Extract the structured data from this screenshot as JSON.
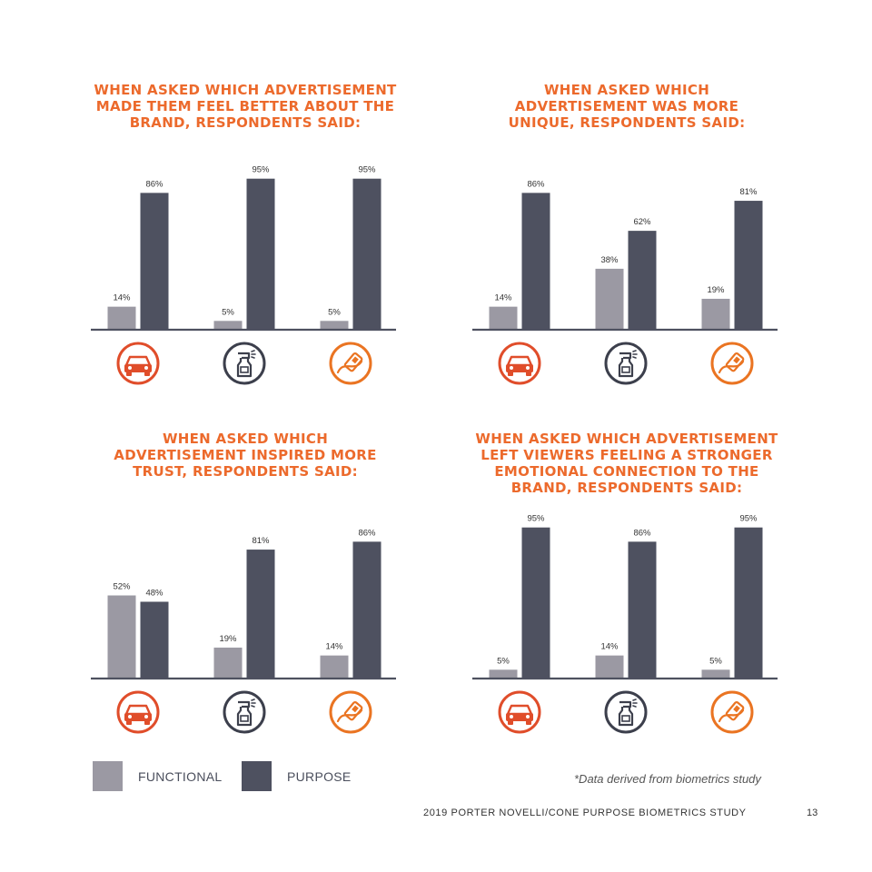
{
  "colors": {
    "functional": "#9b99a3",
    "purpose": "#4e5160",
    "title": "#ec6a2c",
    "icon_red": "#e04d2a",
    "icon_dark": "#3c3f4c",
    "icon_orange": "#ea7422"
  },
  "icons": [
    "car-icon",
    "spray-bottle-icon",
    "seatbelt-icon"
  ],
  "chart_data": [
    {
      "type": "bar",
      "title": "WHEN ASKED WHICH ADVERTISEMENT MADE THEM FEEL BETTER ABOUT THE BRAND, RESPONDENTS SAID:",
      "title_lines": [
        "WHEN ASKED WHICH ADVERTISEMENT",
        "MADE THEM FEEL BETTER ABOUT THE",
        "BRAND, RESPONDENTS SAID:"
      ],
      "categories": [
        "car-icon",
        "spray-bottle-icon",
        "seatbelt-icon"
      ],
      "series": [
        {
          "name": "FUNCTIONAL",
          "values": [
            14,
            5,
            5
          ],
          "labels": [
            "14%",
            "5%",
            "5%"
          ]
        },
        {
          "name": "PURPOSE",
          "values": [
            86,
            95,
            95
          ],
          "labels": [
            "86%",
            "95%",
            "95%"
          ]
        }
      ],
      "ylim": [
        0,
        100
      ]
    },
    {
      "type": "bar",
      "title": "WHEN ASKED WHICH ADVERTISEMENT WAS MORE UNIQUE, RESPONDENTS SAID:",
      "title_lines": [
        "WHEN ASKED WHICH",
        "ADVERTISEMENT WAS MORE",
        "UNIQUE, RESPONDENTS SAID:"
      ],
      "categories": [
        "car-icon",
        "spray-bottle-icon",
        "seatbelt-icon"
      ],
      "series": [
        {
          "name": "FUNCTIONAL",
          "values": [
            14,
            38,
            19
          ],
          "labels": [
            "14%",
            "38%",
            "19%"
          ]
        },
        {
          "name": "PURPOSE",
          "values": [
            86,
            62,
            81
          ],
          "labels": [
            "86%",
            "62%",
            "81%"
          ]
        }
      ],
      "ylim": [
        0,
        100
      ]
    },
    {
      "type": "bar",
      "title": "WHEN ASKED WHICH ADVERTISEMENT INSPIRED MORE TRUST, RESPONDENTS SAID:",
      "title_lines": [
        "WHEN ASKED WHICH",
        "ADVERTISEMENT INSPIRED MORE",
        "TRUST, RESPONDENTS SAID:"
      ],
      "categories": [
        "car-icon",
        "spray-bottle-icon",
        "seatbelt-icon"
      ],
      "series": [
        {
          "name": "FUNCTIONAL",
          "values": [
            52,
            19,
            14
          ],
          "labels": [
            "52%",
            "19%",
            "14%"
          ]
        },
        {
          "name": "PURPOSE",
          "values": [
            48,
            81,
            86
          ],
          "labels": [
            "48%",
            "81%",
            "86%"
          ]
        }
      ],
      "ylim": [
        0,
        100
      ]
    },
    {
      "type": "bar",
      "title": "WHEN ASKED WHICH ADVERTISEMENT LEFT VIEWERS FEELING A STRONGER EMOTIONAL CONNECTION TO THE BRAND, RESPONDENTS SAID:",
      "title_lines": [
        "WHEN ASKED WHICH ADVERTISEMENT",
        "LEFT VIEWERS FEELING A STRONGER",
        "EMOTIONAL CONNECTION TO THE",
        "BRAND, RESPONDENTS SAID:"
      ],
      "categories": [
        "car-icon",
        "spray-bottle-icon",
        "seatbelt-icon"
      ],
      "series": [
        {
          "name": "FUNCTIONAL",
          "values": [
            5,
            14,
            5
          ],
          "labels": [
            "5%",
            "14%",
            "5%"
          ]
        },
        {
          "name": "PURPOSE",
          "values": [
            95,
            86,
            95
          ],
          "labels": [
            "95%",
            "86%",
            "95%"
          ]
        }
      ],
      "ylim": [
        0,
        100
      ]
    }
  ],
  "legend": {
    "functional_label": "FUNCTIONAL",
    "purpose_label": "PURPOSE"
  },
  "footnote": "*Data derived from biometrics study",
  "footer": "2019 PORTER NOVELLI/CONE PURPOSE BIOMETRICS STUDY",
  "page_number": "13"
}
